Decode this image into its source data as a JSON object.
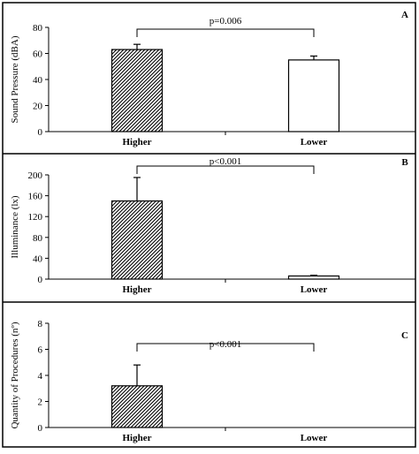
{
  "chart_data": [
    {
      "type": "bar",
      "panel_label": "A",
      "categories": [
        "Higher",
        "Lower"
      ],
      "values": [
        63,
        55
      ],
      "errors": [
        4,
        3
      ],
      "ylabel": "Sound Pressure (dBA)",
      "ylim": [
        0,
        80
      ],
      "yticks": [
        0,
        20,
        40,
        60,
        80
      ],
      "pvalue": "p=0.006",
      "bar_patterns": [
        "hatched",
        "white"
      ],
      "grid": false
    },
    {
      "type": "bar",
      "panel_label": "B",
      "categories": [
        "Higher",
        "Lower"
      ],
      "values": [
        150,
        6
      ],
      "errors": [
        45,
        1.5
      ],
      "ylabel": "Illuminance (lx)",
      "ylim": [
        0,
        200
      ],
      "yticks": [
        0,
        40,
        80,
        120,
        160,
        200
      ],
      "pvalue": "p<0.001",
      "bar_patterns": [
        "hatched",
        "white"
      ],
      "grid": false
    },
    {
      "type": "bar",
      "panel_label": "C",
      "categories": [
        "Higher",
        "Lower"
      ],
      "values": [
        3.2,
        0
      ],
      "errors": [
        1.6,
        0
      ],
      "ylabel": "Quantity of Procedures (nº)",
      "ylim": [
        0,
        8
      ],
      "yticks": [
        0,
        2,
        4,
        6,
        8
      ],
      "pvalue": "p<0.001",
      "bar_patterns": [
        "hatched",
        "white"
      ],
      "grid": false
    }
  ]
}
